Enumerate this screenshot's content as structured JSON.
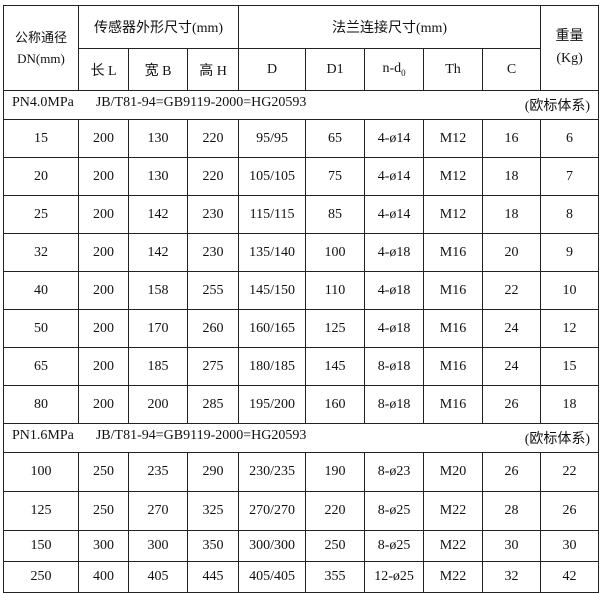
{
  "header": {
    "dn_label_1": "公称通径",
    "dn_label_2": "DN(mm)",
    "sensor_group": "传感器外形尺寸(mm)",
    "flange_group": "法兰连接尺寸(mm)",
    "weight_1": "重量",
    "weight_2": "(Kg)",
    "columns": [
      "长 L",
      "宽 B",
      "高 H",
      "D",
      "D1",
      "n-d",
      "Th",
      "C"
    ],
    "nd_subscript": "0"
  },
  "sections": [
    {
      "pressure": "PN4.0MPa",
      "standard": "JB/T81-94=GB9119-2000=HG20593",
      "system": "(欧标体系)",
      "rows": [
        [
          "15",
          "200",
          "130",
          "220",
          "95/95",
          "65",
          "4-ø14",
          "M12",
          "16",
          "6"
        ],
        [
          "20",
          "200",
          "130",
          "220",
          "105/105",
          "75",
          "4-ø14",
          "M12",
          "18",
          "7"
        ],
        [
          "25",
          "200",
          "142",
          "230",
          "115/115",
          "85",
          "4-ø14",
          "M12",
          "18",
          "8"
        ],
        [
          "32",
          "200",
          "142",
          "230",
          "135/140",
          "100",
          "4-ø18",
          "M16",
          "20",
          "9"
        ],
        [
          "40",
          "200",
          "158",
          "255",
          "145/150",
          "110",
          "4-ø18",
          "M16",
          "22",
          "10"
        ],
        [
          "50",
          "200",
          "170",
          "260",
          "160/165",
          "125",
          "4-ø18",
          "M16",
          "24",
          "12"
        ],
        [
          "65",
          "200",
          "185",
          "275",
          "180/185",
          "145",
          "8-ø18",
          "M16",
          "24",
          "15"
        ],
        [
          "80",
          "200",
          "200",
          "285",
          "195/200",
          "160",
          "8-ø18",
          "M16",
          "26",
          "18"
        ]
      ]
    },
    {
      "pressure": "PN1.6MPa",
      "standard": "JB/T81-94=GB9119-2000=HG20593",
      "system": "(欧标体系)",
      "rows": [
        [
          "100",
          "250",
          "235",
          "290",
          "230/235",
          "190",
          "8-ø23",
          "M20",
          "26",
          "22"
        ],
        [
          "125",
          "250",
          "270",
          "325",
          "270/270",
          "220",
          "8-ø25",
          "M22",
          "28",
          "26"
        ],
        [
          "150",
          "300",
          "300",
          "350",
          "300/300",
          "250",
          "8-ø25",
          "M22",
          "30",
          "30"
        ],
        [
          "250",
          "400",
          "405",
          "445",
          "405/405",
          "355",
          "12-ø25",
          "M22",
          "32",
          "42"
        ]
      ]
    }
  ]
}
